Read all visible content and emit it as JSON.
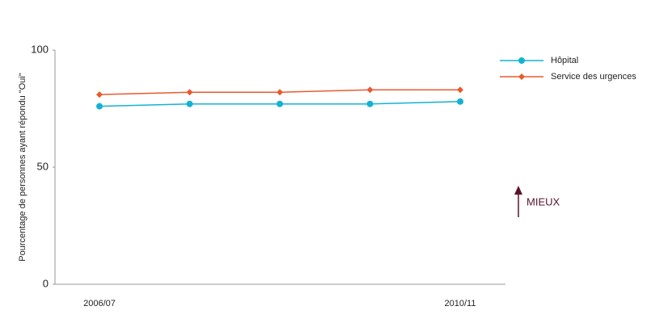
{
  "chart_data": {
    "type": "line",
    "ylabel": "Pourcentage de personnes ayant répondu \"Oui\"",
    "categories": [
      "2006/07",
      null,
      null,
      null,
      "2010/11"
    ],
    "series": [
      {
        "name": "Hôpital",
        "color": "#13b2d4",
        "marker": "circle",
        "values": [
          76,
          77,
          77,
          77,
          78
        ]
      },
      {
        "name": "Service des urgences",
        "color": "#e85a2c",
        "marker": "diamond",
        "values": [
          81,
          82,
          82,
          83,
          83
        ]
      }
    ],
    "ylim": [
      0,
      100
    ],
    "yticks": [
      0,
      50,
      100
    ],
    "grid": false,
    "legend": "upper right",
    "annotation": "MIEUX"
  }
}
